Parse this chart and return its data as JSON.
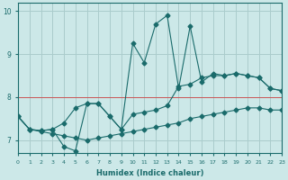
{
  "xlabel": "Humidex (Indice chaleur)",
  "background_color": "#cce8e8",
  "grid_color": "#aacccc",
  "line_color": "#1a6b6b",
  "red_line_color": "#cc5555",
  "x_values": [
    0,
    1,
    2,
    3,
    4,
    5,
    6,
    7,
    8,
    9,
    10,
    11,
    12,
    13,
    14,
    15,
    16,
    17,
    18,
    19,
    20,
    21,
    22,
    23
  ],
  "line_bottom": [
    7.55,
    7.25,
    7.2,
    7.15,
    7.1,
    7.05,
    7.0,
    7.05,
    7.1,
    7.15,
    7.2,
    7.25,
    7.3,
    7.35,
    7.4,
    7.5,
    7.55,
    7.6,
    7.65,
    7.7,
    7.75,
    7.75,
    7.7,
    7.7
  ],
  "line_mid": [
    7.55,
    7.25,
    7.22,
    7.25,
    7.4,
    7.75,
    7.85,
    7.85,
    7.55,
    7.25,
    7.6,
    7.65,
    7.7,
    7.8,
    8.25,
    8.3,
    8.45,
    8.5,
    8.5,
    8.55,
    8.5,
    8.45,
    8.2,
    8.15
  ],
  "line_top": [
    7.55,
    7.25,
    7.22,
    7.25,
    6.85,
    6.75,
    7.85,
    7.85,
    7.55,
    7.25,
    9.25,
    8.8,
    9.7,
    9.9,
    8.2,
    9.65,
    8.35,
    8.55,
    8.5,
    8.55,
    8.5,
    8.45,
    8.2,
    8.15
  ],
  "xlim": [
    0,
    23
  ],
  "ylim": [
    6.7,
    10.2
  ],
  "yticks": [
    7,
    8,
    9,
    10
  ],
  "xticks": [
    0,
    1,
    2,
    3,
    4,
    5,
    6,
    7,
    8,
    9,
    10,
    11,
    12,
    13,
    14,
    15,
    16,
    17,
    18,
    19,
    20,
    21,
    22,
    23
  ],
  "red_y": 8.0
}
